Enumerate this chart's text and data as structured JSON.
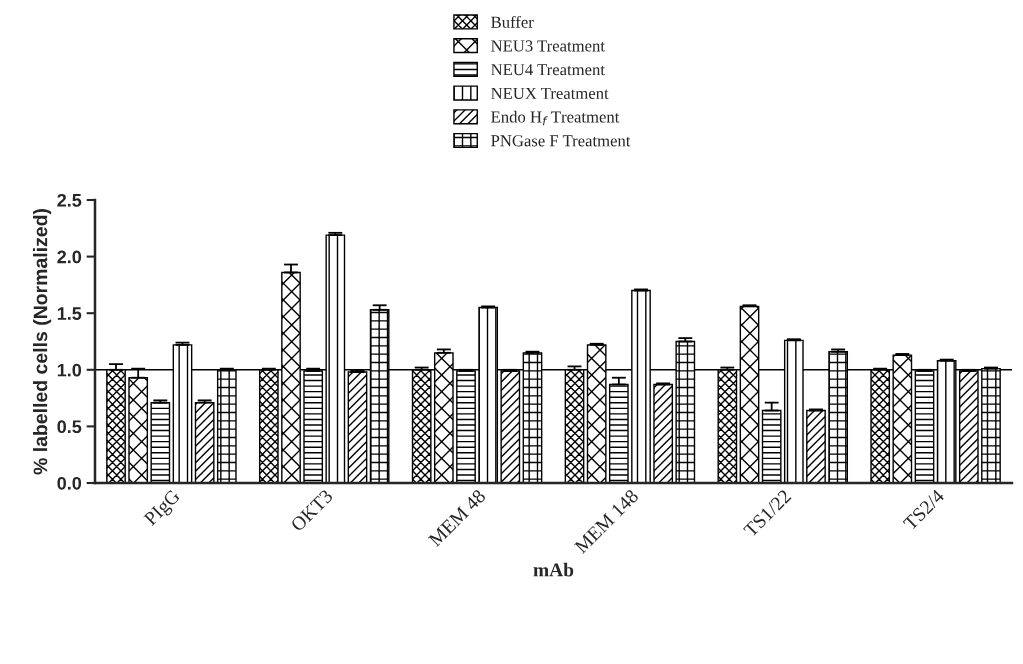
{
  "chart_data": {
    "type": "bar",
    "xlabel": "mAb",
    "ylabel": "% labelled cells (Normalized)",
    "categories": [
      "PIgG",
      "OKT3",
      "MEM 48",
      "MEM 148",
      "TS1/22",
      "TS2/4"
    ],
    "series": [
      {
        "name": "Buffer",
        "color": "#000000",
        "values": [
          1.0,
          1.0,
          1.0,
          1.0,
          1.0,
          1.0
        ],
        "errors": [
          [
            1.0,
            1.05
          ],
          [
            1.0,
            1.01
          ],
          [
            1.0,
            1.02
          ],
          [
            1.0,
            1.03
          ],
          [
            1.0,
            1.02
          ],
          [
            1.0,
            1.01
          ]
        ]
      },
      {
        "name": "NEU3 Treatment",
        "color": "#000000",
        "values": [
          0.93,
          1.86,
          1.15,
          1.22,
          1.56,
          1.13
        ],
        "errors": [
          [
            0.93,
            1.01
          ],
          [
            1.86,
            1.93
          ],
          [
            1.15,
            1.18
          ],
          [
            1.22,
            1.23
          ],
          [
            1.56,
            1.57
          ],
          [
            1.13,
            1.14
          ]
        ]
      },
      {
        "name": "NEU4 Treatment",
        "color": "#000000",
        "values": [
          0.71,
          0.99,
          0.99,
          0.87,
          0.64,
          0.99
        ],
        "errors": [
          [
            0.71,
            0.73
          ],
          [
            0.99,
            1.01
          ],
          [
            0.99,
            1.0
          ],
          [
            0.87,
            0.93
          ],
          [
            0.64,
            0.71
          ],
          [
            0.99,
            1.0
          ]
        ]
      },
      {
        "name": "NEUX Treatment",
        "color": "#000000",
        "values": [
          1.22,
          2.19,
          1.55,
          1.7,
          1.26,
          1.08
        ],
        "errors": [
          [
            1.22,
            1.24
          ],
          [
            2.19,
            2.21
          ],
          [
            1.55,
            1.56
          ],
          [
            1.7,
            1.71
          ],
          [
            1.26,
            1.27
          ],
          [
            1.08,
            1.09
          ]
        ]
      },
      {
        "name": "Endo H$_{f}$ Treatment",
        "color": "#000000",
        "values": [
          0.71,
          0.98,
          0.99,
          0.87,
          0.64,
          0.99
        ],
        "errors": [
          [
            0.71,
            0.73
          ],
          [
            0.98,
            0.99
          ],
          [
            0.99,
            1.0
          ],
          [
            0.87,
            0.88
          ],
          [
            0.64,
            0.65
          ],
          [
            0.99,
            1.0
          ]
        ]
      },
      {
        "name": "PNGase F Treatment",
        "color": "#000000",
        "values": [
          1.0,
          1.53,
          1.15,
          1.25,
          1.16,
          1.01
        ],
        "errors": [
          [
            1.0,
            1.01
          ],
          [
            1.53,
            1.57
          ],
          [
            1.15,
            1.16
          ],
          [
            1.25,
            1.28
          ],
          [
            1.16,
            1.18
          ],
          [
            1.01,
            1.02
          ]
        ]
      }
    ],
    "ylim": [
      0,
      2.5
    ],
    "yticks": [
      {
        "value": 0,
        "label": "0.0"
      },
      0.5,
      {
        "value": 1,
        "label": "1.0"
      },
      1.5,
      {
        "value": 2,
        "label": "2.0"
      },
      2.5
    ],
    "ref_lines": [
      {
        "axis": "y",
        "value": 1
      }
    ],
    "grid": false,
    "legend": "top"
  }
}
